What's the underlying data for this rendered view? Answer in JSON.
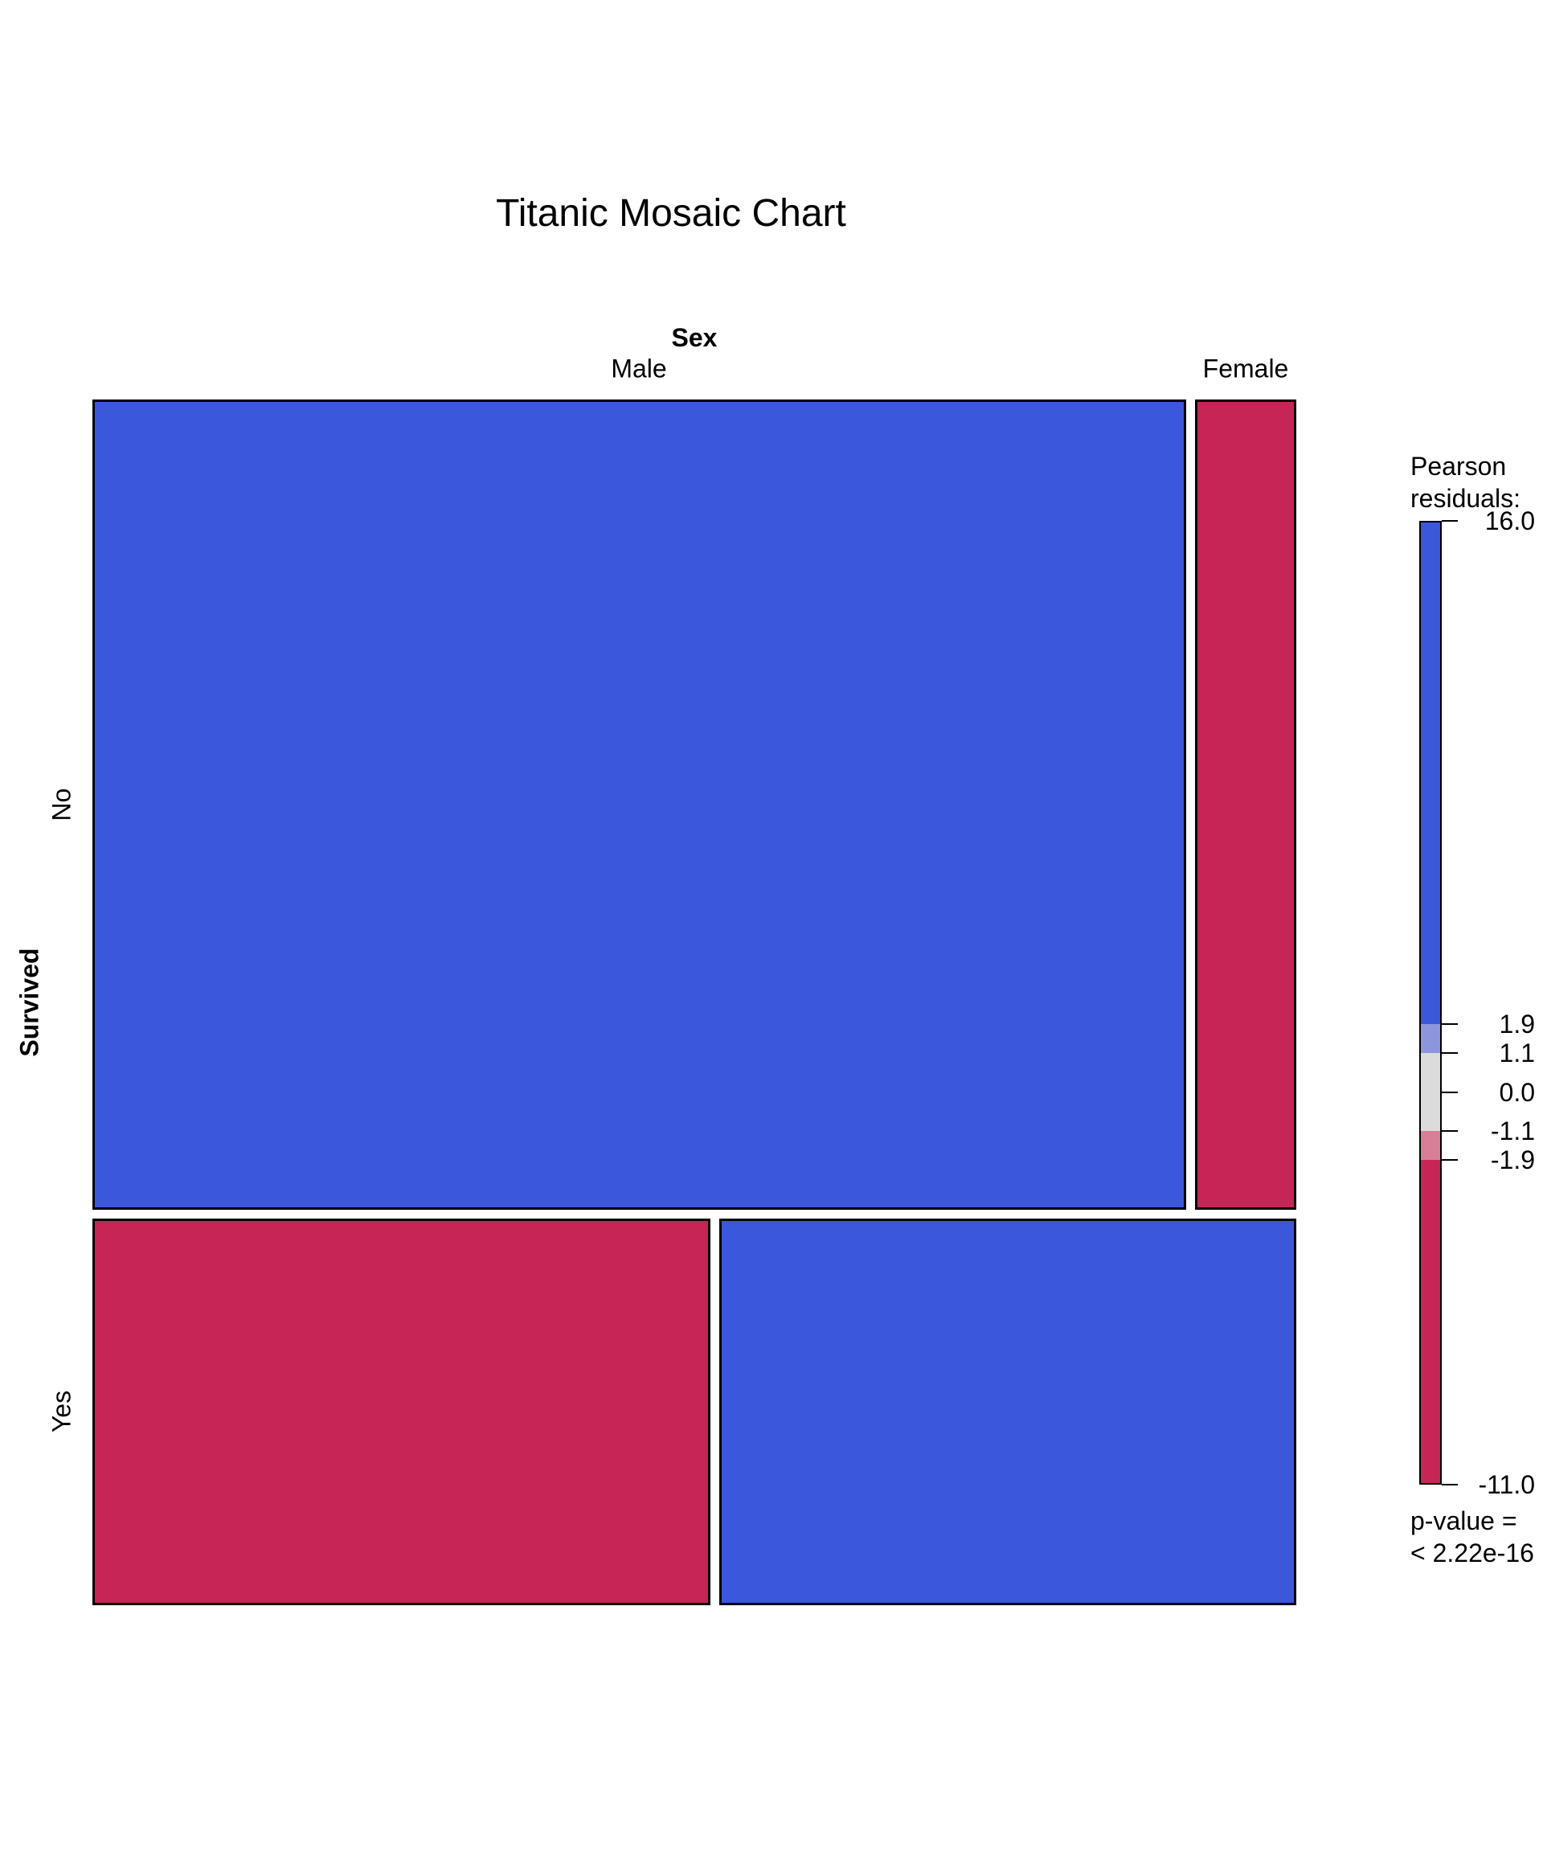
{
  "title": "Titanic Mosaic Chart",
  "axes": {
    "x_label": "Sex",
    "x_categories": [
      "Male",
      "Female"
    ],
    "y_label": "Survived",
    "y_categories": [
      "No",
      "Yes"
    ]
  },
  "legend": {
    "title_line1": "Pearson",
    "title_line2": "residuals:",
    "p_value_line1": "p-value =",
    "p_value_line2": "< 2.22e-16",
    "scale_max": 16.0,
    "scale_min": -11.0,
    "ticks": [
      {
        "value": 16.0,
        "label": "16.0"
      },
      {
        "value": 1.9,
        "label": "1.9"
      },
      {
        "value": 1.1,
        "label": "1.1"
      },
      {
        "value": 0.0,
        "label": "0.0"
      },
      {
        "value": -1.1,
        "label": "-1.1"
      },
      {
        "value": -1.9,
        "label": "-1.9"
      },
      {
        "value": -11.0,
        "label": "-11.0"
      }
    ],
    "segments": [
      {
        "from": 16.0,
        "to": 1.9,
        "color": "#3b57db"
      },
      {
        "from": 1.9,
        "to": 1.1,
        "color": "#8c96dc"
      },
      {
        "from": 1.1,
        "to": -1.1,
        "color": "#dbdbdb"
      },
      {
        "from": -1.1,
        "to": -1.9,
        "color": "#d87f95"
      },
      {
        "from": -1.9,
        "to": -11.0,
        "color": "#c62655"
      }
    ]
  },
  "colors": {
    "strong_positive": "#3b57db",
    "strong_negative": "#c62655",
    "tile_border": "#000000"
  },
  "chart_data": {
    "type": "mosaic",
    "title": "Titanic Mosaic Chart",
    "row_variable": "Survived",
    "column_variable": "Sex",
    "legend_title": "Pearson residuals:",
    "legend_range": [
      -11.0,
      16.0
    ],
    "p_value": "< 2.22e-16",
    "rows": [
      {
        "label": "No",
        "height_frac": 0.677,
        "cells": [
          {
            "label": "Male",
            "width_frac": 0.915,
            "shade": "strong_positive",
            "residual_bin": "> 1.9"
          },
          {
            "label": "Female",
            "width_frac": 0.085,
            "shade": "strong_negative",
            "residual_bin": "< -1.9"
          }
        ]
      },
      {
        "label": "Yes",
        "height_frac": 0.323,
        "cells": [
          {
            "label": "Male",
            "width_frac": 0.517,
            "shade": "strong_negative",
            "residual_bin": "< -1.9"
          },
          {
            "label": "Female",
            "width_frac": 0.483,
            "shade": "strong_positive",
            "residual_bin": "> 1.9"
          }
        ]
      }
    ]
  }
}
